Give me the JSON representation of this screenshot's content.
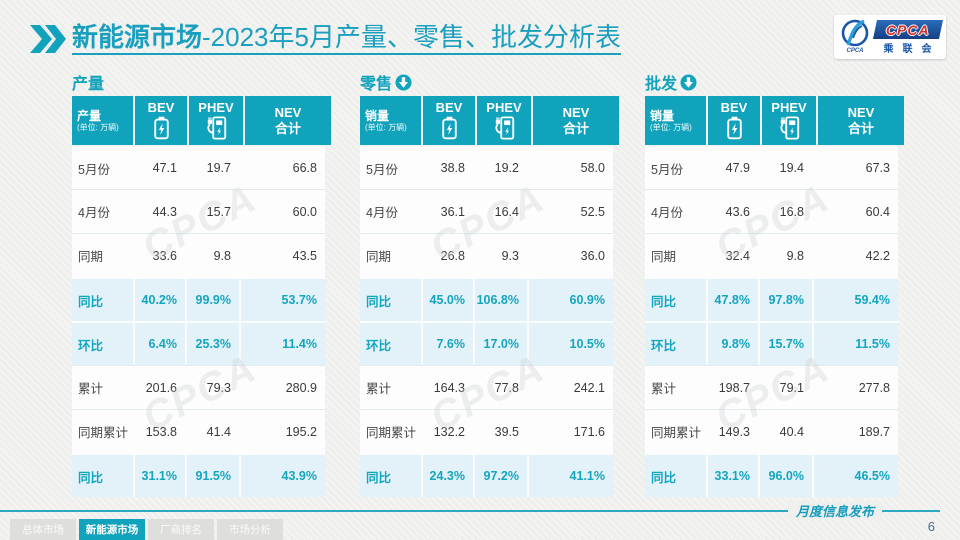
{
  "title": {
    "prefix": "新能源市场",
    "rest": "-2023年5月产量、零售、批发分析表"
  },
  "logo": {
    "swirl_sub": "CPCA",
    "band": "CPCA",
    "org": "乘联会"
  },
  "watermark": "CPCA",
  "colors": {
    "teal": "#12a3bc",
    "highlight_bg": "#e3f2f8",
    "logo_blue": "#1a56a8",
    "logo_red": "#d42e28"
  },
  "tables": [
    {
      "section": "产量",
      "has_arrow": false,
      "header": {
        "title": "产量",
        "unit": "(单位: 万辆)",
        "col_bev": "BEV",
        "col_phev": "PHEV",
        "total_line1": "NEV",
        "total_line2": "合计"
      },
      "rows": [
        {
          "label": "5月份",
          "values": [
            "47.1",
            "19.7",
            "66.8"
          ],
          "highlight": false
        },
        {
          "label": "4月份",
          "values": [
            "44.3",
            "15.7",
            "60.0"
          ],
          "highlight": false
        },
        {
          "label": "同期",
          "values": [
            "33.6",
            "9.8",
            "43.5"
          ],
          "highlight": false
        },
        {
          "label": "同比",
          "values": [
            "40.2%",
            "99.9%",
            "53.7%"
          ],
          "highlight": true
        },
        {
          "label": "环比",
          "values": [
            "6.4%",
            "25.3%",
            "11.4%"
          ],
          "highlight": true
        },
        {
          "label": "累计",
          "values": [
            "201.6",
            "79.3",
            "280.9"
          ],
          "highlight": false
        },
        {
          "label": "同期累计",
          "values": [
            "153.8",
            "41.4",
            "195.2"
          ],
          "highlight": false
        },
        {
          "label": "同比",
          "values": [
            "31.1%",
            "91.5%",
            "43.9%"
          ],
          "highlight": true
        }
      ]
    },
    {
      "section": "零售",
      "has_arrow": true,
      "header": {
        "title": "销量",
        "unit": "(单位: 万辆)",
        "col_bev": "BEV",
        "col_phev": "PHEV",
        "total_line1": "NEV",
        "total_line2": "合计"
      },
      "rows": [
        {
          "label": "5月份",
          "values": [
            "38.8",
            "19.2",
            "58.0"
          ],
          "highlight": false
        },
        {
          "label": "4月份",
          "values": [
            "36.1",
            "16.4",
            "52.5"
          ],
          "highlight": false
        },
        {
          "label": "同期",
          "values": [
            "26.8",
            "9.3",
            "36.0"
          ],
          "highlight": false
        },
        {
          "label": "同比",
          "values": [
            "45.0%",
            "106.8%",
            "60.9%"
          ],
          "highlight": true
        },
        {
          "label": "环比",
          "values": [
            "7.6%",
            "17.0%",
            "10.5%"
          ],
          "highlight": true
        },
        {
          "label": "累计",
          "values": [
            "164.3",
            "77.8",
            "242.1"
          ],
          "highlight": false
        },
        {
          "label": "同期累计",
          "values": [
            "132.2",
            "39.5",
            "171.6"
          ],
          "highlight": false
        },
        {
          "label": "同比",
          "values": [
            "24.3%",
            "97.2%",
            "41.1%"
          ],
          "highlight": true
        }
      ]
    },
    {
      "section": "批发",
      "has_arrow": true,
      "header": {
        "title": "销量",
        "unit": "(单位: 万辆)",
        "col_bev": "BEV",
        "col_phev": "PHEV",
        "total_line1": "NEV",
        "total_line2": "合计"
      },
      "rows": [
        {
          "label": "5月份",
          "values": [
            "47.9",
            "19.4",
            "67.3"
          ],
          "highlight": false
        },
        {
          "label": "4月份",
          "values": [
            "43.6",
            "16.8",
            "60.4"
          ],
          "highlight": false
        },
        {
          "label": "同期",
          "values": [
            "32.4",
            "9.8",
            "42.2"
          ],
          "highlight": false
        },
        {
          "label": "同比",
          "values": [
            "47.8%",
            "97.8%",
            "59.4%"
          ],
          "highlight": true
        },
        {
          "label": "环比",
          "values": [
            "9.8%",
            "15.7%",
            "11.5%"
          ],
          "highlight": true
        },
        {
          "label": "累计",
          "values": [
            "198.7",
            "79.1",
            "277.8"
          ],
          "highlight": false
        },
        {
          "label": "同期累计",
          "values": [
            "149.3",
            "40.4",
            "189.7"
          ],
          "highlight": false
        },
        {
          "label": "同比",
          "values": [
            "33.1%",
            "96.0%",
            "46.5%"
          ],
          "highlight": true
        }
      ]
    }
  ],
  "footer": {
    "tabs": [
      {
        "label": "总体市场",
        "active": false
      },
      {
        "label": "新能源市场",
        "active": true
      },
      {
        "label": "厂商排名",
        "active": false
      },
      {
        "label": "市场分析",
        "active": false
      }
    ],
    "script_text": "月度信息发布",
    "page": "6"
  }
}
